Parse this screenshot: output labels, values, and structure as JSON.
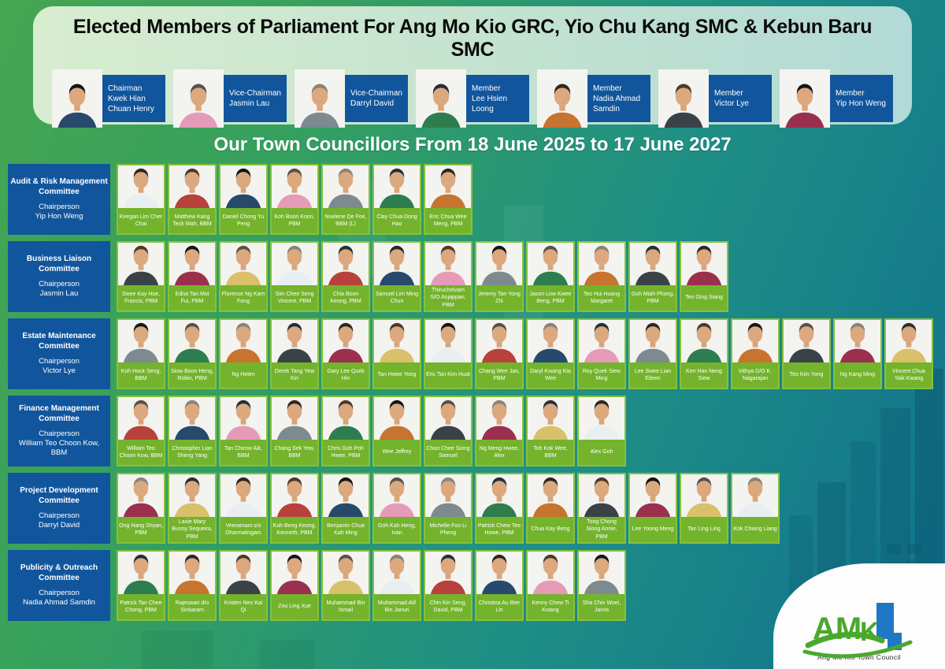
{
  "poster": {
    "title": "Elected Members of Parliament For Ang Mo Kio GRC, Yio Chu Kang SMC & Kebun Baru SMC",
    "subtitle": "Our Town Councillors From 18 June 2025 to 17 June 2027"
  },
  "mps": [
    {
      "role": "Chairman",
      "name": "Kwek Hian Chuan Henry"
    },
    {
      "role": "Vice-Chairman",
      "name": "Jasmin Lau"
    },
    {
      "role": "Vice-Chairman",
      "name": "Darryl David"
    },
    {
      "role": "Member",
      "name": "Lee Hsien Loong"
    },
    {
      "role": "Member",
      "name": "Nadia Ahmad Samdin"
    },
    {
      "role": "Member",
      "name": "Victor Lye"
    },
    {
      "role": "Member",
      "name": "Yip Hon Weng"
    }
  ],
  "committees": [
    {
      "name": "Audit & Risk Management Committee",
      "chair_label": "Chairperson",
      "chairperson": "Yip Hon Weng",
      "members": [
        "Keegan Lim Cher Chai",
        "Matthew Kang Teck Wah, BBM",
        "Daniel Chong Yu Peng",
        "Koh Boon Koon, PBM",
        "Noelene De Foe, BBM (L)",
        "Clay Chua Dong Hao",
        "Eric Chua Wee Meng, PBM"
      ]
    },
    {
      "name": "Business Liaison Committee",
      "chair_label": "Chairperson",
      "chairperson": "Jasmin Lau",
      "members": [
        "Swee Kay Hoe, Francis, PBM",
        "Edna Tan Moi Fui, PBM",
        "Florence Ng Kam Fong",
        "Sim Chee Seng Vincent, PBM",
        "Chia Boon Keong, PBM",
        "Samuel Lim Ming Chun",
        "Thiruchelvam S/O Anjappan, PBM",
        "Jeremy Tan Yong Zhi",
        "Jason Low Kwee Beng, PBM",
        "Teo Hui Huang Margaret",
        "Goh Miah Phong, PBM",
        "Teo Ging Siang"
      ]
    },
    {
      "name": "Estate Maintenance Committee",
      "chair_label": "Chairperson",
      "chairperson": "Victor Lye",
      "members": [
        "Koh Hock Seng, BBM",
        "Siow Boon Heng, Robin, PBM",
        "Ng Helen",
        "Derek Tang Yew Kin",
        "Gary Lee Quek Hin",
        "Tan Hwee Yong",
        "Eric Tan Kim Huat",
        "Chang Wee Jan, PBM",
        "Daryl Kwang Kia Wee",
        "Roy Quek Siew Ming",
        "Lee Swee Lian Eileen",
        "Ken Han Neng Siew",
        "Vithya D/O K. Nagarajan",
        "Teo Kim Yong",
        "Ng Kang Ming",
        "Vincent Chua Yaik Kwang"
      ]
    },
    {
      "name": "Finance Management Committee",
      "chair_label": "Chairperson",
      "chairperson": "William Teo Choon Kow, BBM",
      "members": [
        "William Teo Choon Kow, BBM",
        "Christopher Lian Sheng Yang",
        "Tan Cheow Aik, BBM",
        "Chang Sek Yew, BBM",
        "Chris Goh Poh Hwee, PBM",
        "Wee Jeffrey",
        "Choo Chee Siong Samuel",
        "Ng Meng Hwee, Alex",
        "Toh Kok Wee, BBM",
        "Alex Goh"
      ]
    },
    {
      "name": "Project Development Committee",
      "chair_label": "Chairperson",
      "chairperson": "Darryl David",
      "members": [
        "Ong Hang Shyan, PBM",
        "Laxie Mary Bunny Sequeira, PBM",
        "Veeramani s/o Dharmalingam",
        "Koh Beng Keong, Kenneth, PBM",
        "Benjamin Chua Kah Ming",
        "Goh Kah Heng, Ivan",
        "Michelle Foo Li Pheng",
        "Patrick Chew Tee Howe, PBM",
        "Chua Kay Beng",
        "Tong Chong Siong Annie, PBM",
        "Lee Yoong Meng",
        "Tan Ling Ling",
        "Kok Chiang Liang"
      ]
    },
    {
      "name": "Publicity & Outreach Committee",
      "chair_label": "Chairperson",
      "chairperson": "Nadia Ahmad Samdin",
      "members": [
        "Patrick Tan Chee Chong, PBM",
        "Rajeswari d/o Sinkaram",
        "Kristen Neo Kai Qi",
        "Zou Ling Xue",
        "Muhammad Bin Ismail",
        "Muhammad Alif Bin Januri",
        "Chin Kin Seng, David, PBM",
        "Christina Au Bee Lin",
        "Kenny Chew Ti Kwang",
        "Sha Chin Woei, Jarvis"
      ]
    }
  ],
  "logo": {
    "letters": "AMK",
    "caption": "Ang Mo Kio Town Council"
  },
  "colors": {
    "committee_blue": "#11569d",
    "label_green": "#74b32c",
    "frame_green": "#86c13d",
    "banner_light_green": "#d8edd0",
    "background_green": "#46a652",
    "background_teal": "#10718e",
    "logo_green": "#4ba82e",
    "logo_blue": "#1f77c5"
  }
}
